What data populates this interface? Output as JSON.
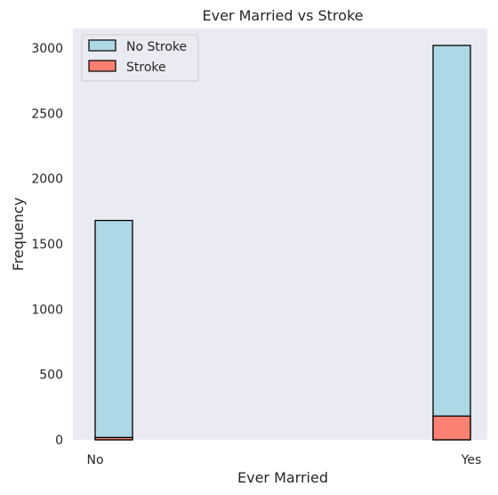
{
  "chart_data": {
    "type": "bar",
    "title": "Ever Married vs Stroke",
    "xlabel": "Ever Married",
    "ylabel": "Frequency",
    "categories": [
      "No",
      "Yes"
    ],
    "ylim": [
      0,
      3150
    ],
    "yticks": [
      0,
      500,
      1000,
      1500,
      2000,
      2500,
      3000
    ],
    "grid": false,
    "legend_position": "top-left",
    "series": [
      {
        "name": "No Stroke",
        "values": [
          1680,
          3020
        ],
        "color": "#add8e6"
      },
      {
        "name": "Stroke",
        "values": [
          18,
          182
        ],
        "color": "#fa8072"
      }
    ],
    "plot_background": "#eaeaf2",
    "edge_color": "#000000"
  }
}
